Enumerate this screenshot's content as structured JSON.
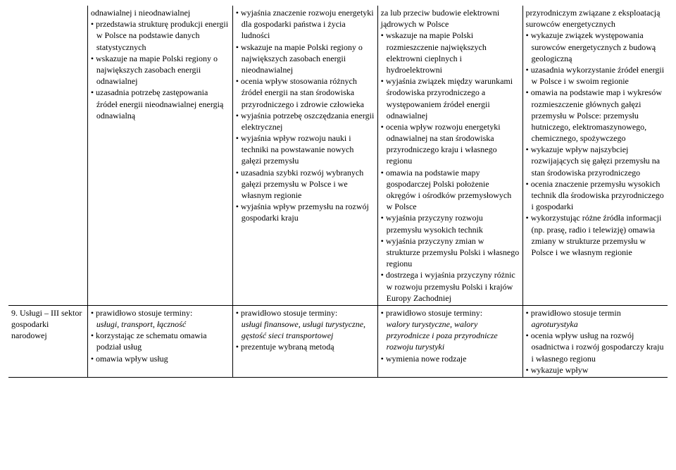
{
  "table": {
    "row1": {
      "c0": "",
      "c1": [
        {
          "t": "odnawialnej i nieodnawialnej",
          "b": false
        },
        {
          "t": "przedstawia strukturę produkcji energii w Polsce na podstawie danych statystycznych",
          "b": true
        },
        {
          "t": "wskazuje na mapie Polski regiony o największych zasobach energii odnawialnej",
          "b": true
        },
        {
          "t": "uzasadnia potrzebę zastępowania źródeł energii nieodnawialnej energią odnawialną",
          "b": true
        }
      ],
      "c2": [
        {
          "t": "wyjaśnia znaczenie rozwoju energetyki dla gospodarki państwa i życia ludności",
          "b": true
        },
        {
          "t": "wskazuje na mapie Polski regiony o największych zasobach energii nieodnawialnej",
          "b": true
        },
        {
          "t": "ocenia wpływ stosowania różnych źródeł energii na stan środowiska przyrodniczego i zdrowie człowieka",
          "b": true
        },
        {
          "t": "wyjaśnia potrzebę oszczędzania energii elektrycznej",
          "b": true
        },
        {
          "t": "wyjaśnia wpływ rozwoju nauki i techniki na powstawanie nowych gałęzi przemysłu",
          "b": true
        },
        {
          "t": "uzasadnia szybki rozwój wybranych gałęzi przemysłu w Polsce i we własnym regionie",
          "b": true
        },
        {
          "t": "wyjaśnia wpływ przemysłu na rozwój gospodarki kraju",
          "b": true
        }
      ],
      "c3": [
        {
          "t": "za lub przeciw budowie elektrowni jądrowych w Polsce",
          "b": false
        },
        {
          "t": "wskazuje na mapie Polski rozmieszczenie największych elektrowni cieplnych i hydroelektrowni",
          "b": true
        },
        {
          "t": "wyjaśnia związek między warunkami środowiska przyrodniczego a występowaniem źródeł energii odnawialnej",
          "b": true
        },
        {
          "t": "ocenia wpływ rozwoju energetyki odnawialnej na stan środowiska przyrodniczego kraju i własnego regionu",
          "b": true
        },
        {
          "t": "omawia na podstawie mapy gospodarczej Polski położenie okręgów i ośrodków przemysłowych w Polsce",
          "b": true
        },
        {
          "t": "wyjaśnia przyczyny rozwoju przemysłu wysokich technik",
          "b": true
        },
        {
          "t": "wyjaśnia przyczyny zmian w strukturze przemysłu Polski i własnego regionu",
          "b": true
        },
        {
          "t": "dostrzega i wyjaśnia przyczyny różnic w rozwoju przemysłu Polski i krajów Europy Zachodniej",
          "b": true
        }
      ],
      "c4": [
        {
          "t": "przyrodniczym związane z eksploatacją surowców energetycznych",
          "b": false
        },
        {
          "t": "wykazuje związek występowania surowców energetycznych z budową geologiczną",
          "b": true
        },
        {
          "t": "uzasadnia wykorzystanie źródeł energii w Polsce i w swoim regionie",
          "b": true
        },
        {
          "t": "omawia na podstawie map i wykresów rozmieszczenie głównych gałęzi przemysłu w Polsce: przemysłu hutniczego, elektromaszynowego, chemicznego, spożywczego",
          "b": true
        },
        {
          "t": "wykazuje wpływ najszybciej rozwijających się gałęzi przemysłu na stan środowiska przyrodniczego",
          "b": true
        },
        {
          "t": "ocenia znaczenie przemysłu wysokich technik dla środowiska przyrodniczego i gospodarki",
          "b": true
        },
        {
          "t": "wykorzystując różne źródła informacji (np. prasę, radio i telewizję) omawia zmiany w strukturze przemysłu w Polsce i we własnym regionie",
          "b": true
        }
      ]
    },
    "row2": {
      "c0": "9. Usługi – III sektor gospodarki narodowej",
      "c1_lead": "prawidłowo stosuje terminy:",
      "c1_terms": "usługi, transport, łączność",
      "c1_rest": [
        {
          "t": "korzystając ze schematu omawia podział usług",
          "b": true
        },
        {
          "t": "omawia wpływ usług",
          "b": true
        }
      ],
      "c2_lead": "prawidłowo stosuje terminy:",
      "c2_terms": "usługi finansowe, usługi turystyczne, gęstość sieci transportowej",
      "c2_rest": [
        {
          "t": "prezentuje wybraną metodą",
          "b": true
        }
      ],
      "c3_lead": "prawidłowo stosuje terminy:",
      "c3_terms": "walory turystyczne, walory przyrodnicze i poza przyrodnicze rozwoju turystyki",
      "c3_rest": [
        {
          "t": "wymienia nowe rodzaje",
          "b": true
        }
      ],
      "c4_lead": "prawidłowo stosuje termin",
      "c4_terms": "agroturystyka",
      "c4_rest": [
        {
          "t": "ocenia wpływ usług na rozwój osadnictwa i rozwój gospodarczy kraju i własnego regionu",
          "b": true
        },
        {
          "t": "wykazuje wpływ",
          "b": true
        }
      ]
    }
  }
}
